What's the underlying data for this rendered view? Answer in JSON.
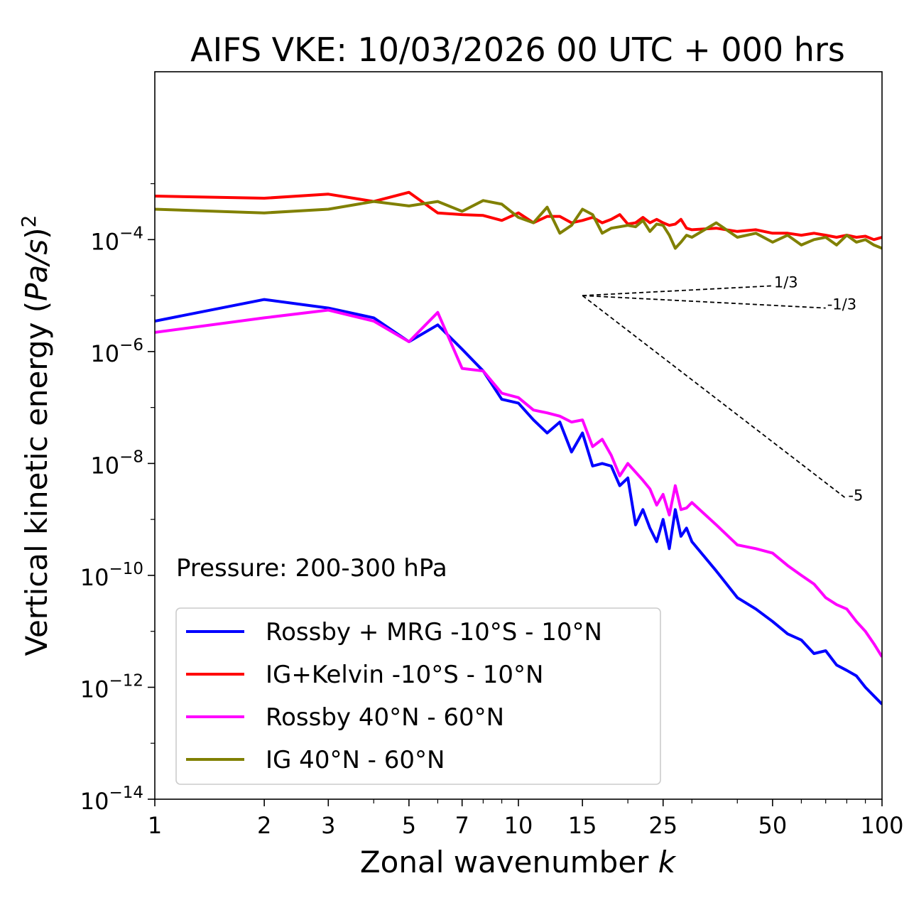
{
  "chart_data": {
    "type": "line",
    "title": "AIFS VKE: 10/03/2026 00 UTC + 000 hrs",
    "xlabel_text": "Zonal wavenumber ",
    "xlabel_italic": "k",
    "ylabel_text": "Vertical kinetic energy (",
    "ylabel_italic": "Pa/s",
    "ylabel_close": ")",
    "ylabel_sup": "2",
    "xscale": "log",
    "yscale": "log",
    "xlim": [
      1,
      100
    ],
    "ylim": [
      1e-14,
      0.1
    ],
    "xticks": [
      1,
      2,
      3,
      5,
      7,
      10,
      15,
      25,
      50,
      100
    ],
    "xtick_labels": [
      "1",
      "2",
      "3",
      "5",
      "7",
      "10",
      "15",
      "25",
      "50",
      "100"
    ],
    "yticks": [
      {
        "value": 0.0001,
        "base": "10",
        "exp": "−4"
      },
      {
        "value": 1e-06,
        "base": "10",
        "exp": "−6"
      },
      {
        "value": 1e-08,
        "base": "10",
        "exp": "−8"
      },
      {
        "value": 1e-10,
        "base": "10",
        "exp": "−10"
      },
      {
        "value": 1e-12,
        "base": "10",
        "exp": "−12"
      },
      {
        "value": 1e-14,
        "base": "10",
        "exp": "−14"
      }
    ],
    "annotation": "Pressure: 200-300 hPa",
    "legend_position": "lower-left",
    "series": [
      {
        "name": "Rossby + MRG -10°S - 10°N",
        "color": "#0000ff",
        "x": [
          1,
          2,
          3,
          4,
          5,
          6,
          7,
          8,
          9,
          10,
          11,
          12,
          13,
          14,
          15,
          16,
          17,
          18,
          19,
          20,
          21,
          22,
          23,
          24,
          25,
          26,
          27,
          28,
          29,
          30,
          35,
          40,
          45,
          50,
          55,
          60,
          65,
          70,
          75,
          80,
          85,
          90,
          95,
          100
        ],
        "y": [
          3.5e-06,
          8.5e-06,
          6e-06,
          4e-06,
          1.5e-06,
          3e-06,
          1.1e-06,
          4.5e-07,
          1.4e-07,
          1.2e-07,
          6e-08,
          3.5e-08,
          5.5e-08,
          1.6e-08,
          3.5e-08,
          9e-09,
          1e-08,
          9e-09,
          4e-09,
          5.5e-09,
          8e-10,
          1.5e-09,
          7e-10,
          4e-10,
          1e-09,
          3e-10,
          1.5e-09,
          5e-10,
          7e-10,
          4e-10,
          1.2e-10,
          4e-11,
          2.5e-11,
          1.5e-11,
          9e-12,
          7e-12,
          4e-12,
          4.5e-12,
          2.5e-12,
          2e-12,
          1.6e-12,
          1e-12,
          7e-13,
          5e-13
        ]
      },
      {
        "name": "IG+Kelvin -10°S - 10°N",
        "color": "#ff0000",
        "x": [
          1,
          2,
          3,
          4,
          5,
          6,
          7,
          8,
          9,
          10,
          11,
          12,
          13,
          14,
          15,
          16,
          17,
          18,
          19,
          20,
          21,
          22,
          23,
          24,
          25,
          26,
          27,
          28,
          29,
          30,
          35,
          40,
          45,
          50,
          55,
          60,
          65,
          70,
          75,
          80,
          85,
          90,
          95,
          100
        ],
        "y": [
          0.0006,
          0.00055,
          0.00065,
          0.00048,
          0.0007,
          0.0003,
          0.00028,
          0.00027,
          0.00022,
          0.0003,
          0.0002,
          0.00026,
          0.00026,
          0.0002,
          0.00022,
          0.00025,
          0.0002,
          0.00023,
          0.00028,
          0.00019,
          0.0002,
          0.00025,
          0.0002,
          0.00023,
          0.0002,
          0.00018,
          0.00019,
          0.00023,
          0.00016,
          0.00015,
          0.00016,
          0.00014,
          0.00015,
          0.00013,
          0.00013,
          0.00012,
          0.00013,
          0.00012,
          0.00011,
          0.00012,
          0.00011,
          0.000115,
          0.0001,
          0.00011
        ]
      },
      {
        "name": "Rossby 40°N - 60°N",
        "color": "#ff00ff",
        "x": [
          1,
          2,
          3,
          4,
          5,
          6,
          7,
          8,
          9,
          10,
          11,
          12,
          13,
          14,
          15,
          16,
          17,
          18,
          19,
          20,
          21,
          22,
          23,
          24,
          25,
          26,
          27,
          28,
          29,
          30,
          35,
          40,
          45,
          50,
          55,
          60,
          65,
          70,
          75,
          80,
          85,
          90,
          95,
          100
        ],
        "y": [
          2.2e-06,
          4e-06,
          5.5e-06,
          3.5e-06,
          1.5e-06,
          5e-06,
          5e-07,
          4.5e-07,
          1.8e-07,
          1.5e-07,
          9e-08,
          8e-08,
          7e-08,
          5.5e-08,
          6e-08,
          2e-08,
          2.7e-08,
          1.4e-08,
          6e-09,
          1e-08,
          7e-09,
          5e-09,
          3.5e-09,
          1.8e-09,
          2.8e-09,
          1.2e-09,
          4e-09,
          1.5e-09,
          1.6e-09,
          2e-09,
          8e-10,
          3.5e-10,
          3e-10,
          2.5e-10,
          1.5e-10,
          1e-10,
          7e-11,
          4e-11,
          3e-11,
          2.5e-11,
          1.5e-11,
          1e-11,
          6e-12,
          3.5e-12
        ]
      },
      {
        "name": "IG 40°N - 60°N",
        "color": "#808000",
        "x": [
          1,
          2,
          3,
          4,
          5,
          6,
          7,
          8,
          9,
          10,
          11,
          12,
          13,
          14,
          15,
          16,
          17,
          18,
          19,
          20,
          21,
          22,
          23,
          24,
          25,
          26,
          27,
          28,
          29,
          30,
          35,
          40,
          45,
          50,
          55,
          60,
          65,
          70,
          75,
          80,
          85,
          90,
          95,
          100
        ],
        "y": [
          0.00035,
          0.0003,
          0.00035,
          0.00048,
          0.0004,
          0.00048,
          0.00032,
          0.0005,
          0.00043,
          0.00025,
          0.0002,
          0.00038,
          0.00013,
          0.00018,
          0.00035,
          0.00028,
          0.00013,
          0.00016,
          0.00017,
          0.00018,
          0.00017,
          0.00022,
          0.00014,
          0.00019,
          0.00018,
          0.00012,
          7e-05,
          9e-05,
          0.00012,
          0.00011,
          0.0002,
          0.00011,
          0.00013,
          9e-05,
          0.00012,
          8e-05,
          0.0001,
          0.00011,
          8e-05,
          0.00012,
          9e-05,
          0.0001,
          8e-05,
          7e-05
        ]
      }
    ],
    "slope_lines": [
      {
        "label": "1/3",
        "x0": 15,
        "y0": 1e-05,
        "x1": 50
      },
      {
        "label": "-1/3",
        "x0": 15,
        "y0": 1e-05,
        "x1": 70
      },
      {
        "label": "-5",
        "x0": 15,
        "y0": 1e-05,
        "x1": 80
      }
    ]
  }
}
